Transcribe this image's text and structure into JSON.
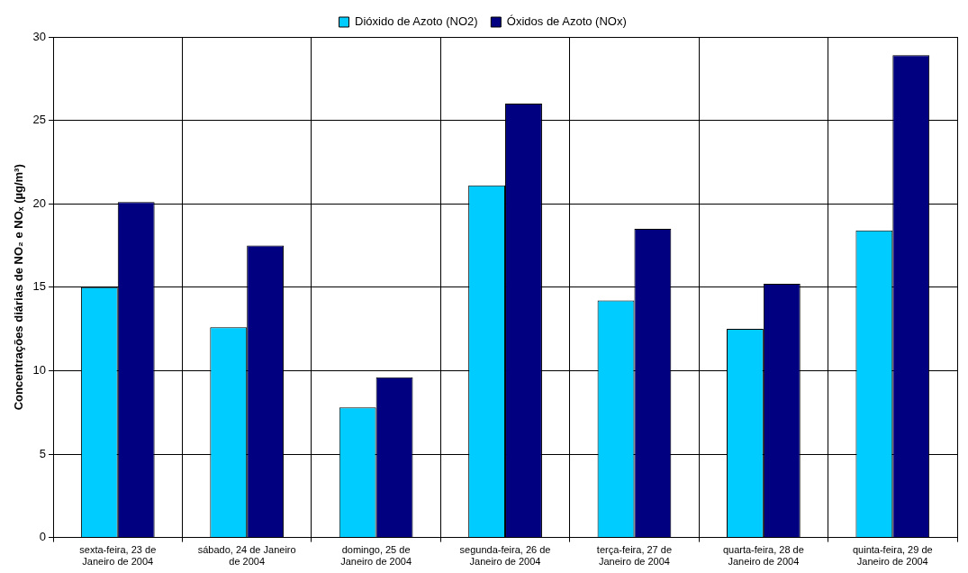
{
  "chart_data": {
    "type": "bar",
    "ylabel": "Concentrações diárias de NO₂ e NOₓ (µg/m³)",
    "categories": [
      "sexta-feira, 23 de Janeiro de 2004",
      "sábado, 24 de Janeiro de 2004",
      "domingo, 25 de Janeiro de 2004",
      "segunda-feira, 26 de Janeiro de 2004",
      "terça-feira, 27 de Janeiro de 2004",
      "quarta-feira, 28 de Janeiro de 2004",
      "quinta-feira, 29 de Janeiro de 2004"
    ],
    "series": [
      {
        "name": "Dióxido de Azoto (NO2)",
        "color": "#00ccff",
        "values": [
          15.0,
          12.6,
          7.8,
          21.1,
          14.2,
          12.5,
          18.4
        ]
      },
      {
        "name": "Óxidos de Azoto (NOx)",
        "color": "#000080",
        "values": [
          20.1,
          17.5,
          9.6,
          26.0,
          18.5,
          15.2,
          28.9
        ]
      }
    ],
    "ylim": [
      0,
      30
    ],
    "yticks": [
      0,
      5,
      10,
      15,
      20,
      25,
      30
    ],
    "grid": true,
    "legend": "top"
  }
}
